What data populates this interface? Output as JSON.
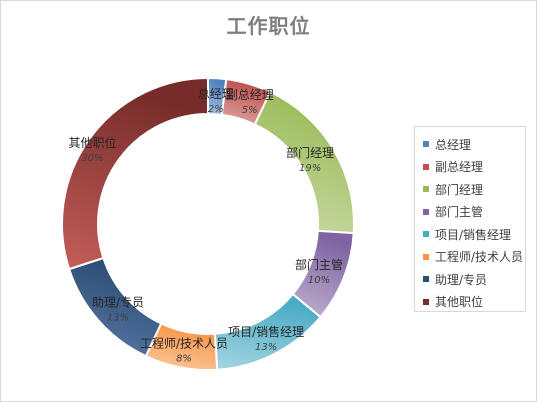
{
  "chart_data": {
    "type": "pie",
    "title": "工作职位",
    "legend_position": "right",
    "categories": [
      "总经理",
      "副总经理",
      "部门经理",
      "部门主管",
      "项目/销售经理",
      "工程师/技术人员",
      "助理/专员",
      "其他职位"
    ],
    "values": [
      2,
      5,
      19,
      10,
      13,
      8,
      13,
      30
    ],
    "value_labels": [
      "2%",
      "5%",
      "19%",
      "10%",
      "13%",
      "8%",
      "13%",
      "30%"
    ],
    "colors": [
      "#4f81bd",
      "#c0504d",
      "#9bbb59",
      "#8064a2",
      "#4bacc6",
      "#f79646",
      "#2c4d75",
      "#772c2a"
    ],
    "colors_light": [
      "#a7c0de",
      "#e0a8a6",
      "#cddcac",
      "#c0b2d0",
      "#a5d5e2",
      "#fbcaa2",
      "#5a7aa6",
      "#c45e5a"
    ]
  }
}
